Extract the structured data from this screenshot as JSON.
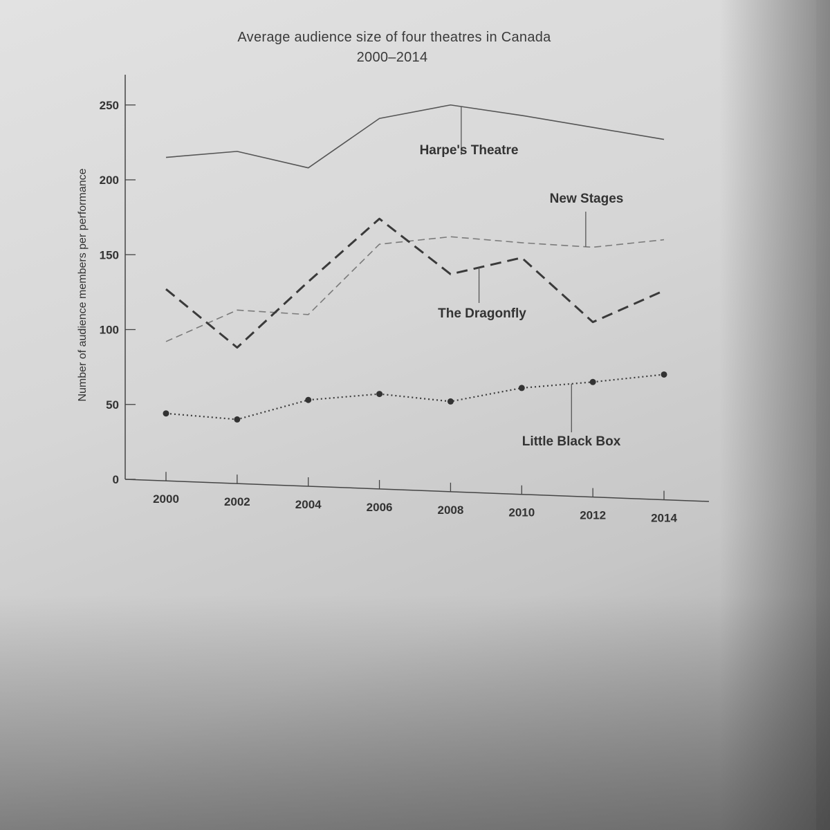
{
  "chart_data": {
    "type": "line",
    "title": "Average audience size of four theatres in Canada",
    "subtitle": "2000–2014",
    "xlabel": "",
    "ylabel": "Number of audience members per performance",
    "x": [
      "2000",
      "2002",
      "2004",
      "2006",
      "2008",
      "2010",
      "2012",
      "2014"
    ],
    "yticks": [
      "0",
      "50",
      "100",
      "150",
      "200",
      "250"
    ],
    "ylim": [
      0,
      270
    ],
    "grid": false,
    "series": [
      {
        "name": "Harpe's Theatre",
        "style": "solid",
        "color": "#555555",
        "values": [
          215,
          219,
          208,
          241,
          250,
          243,
          235,
          227
        ]
      },
      {
        "name": "New Stages",
        "style": "dashed-light",
        "color": "#7a7a7a",
        "values": [
          92,
          113,
          110,
          157,
          162,
          158,
          155,
          160
        ]
      },
      {
        "name": "The Dragonfly",
        "style": "dashed-heavy",
        "color": "#3a3a3a",
        "values": [
          127,
          88,
          132,
          174,
          137,
          148,
          105,
          126
        ]
      },
      {
        "name": "Little Black Box",
        "style": "dotted-markers",
        "color": "#3a3a3a",
        "values": [
          44,
          40,
          53,
          57,
          52,
          61,
          65,
          70
        ]
      }
    ]
  }
}
